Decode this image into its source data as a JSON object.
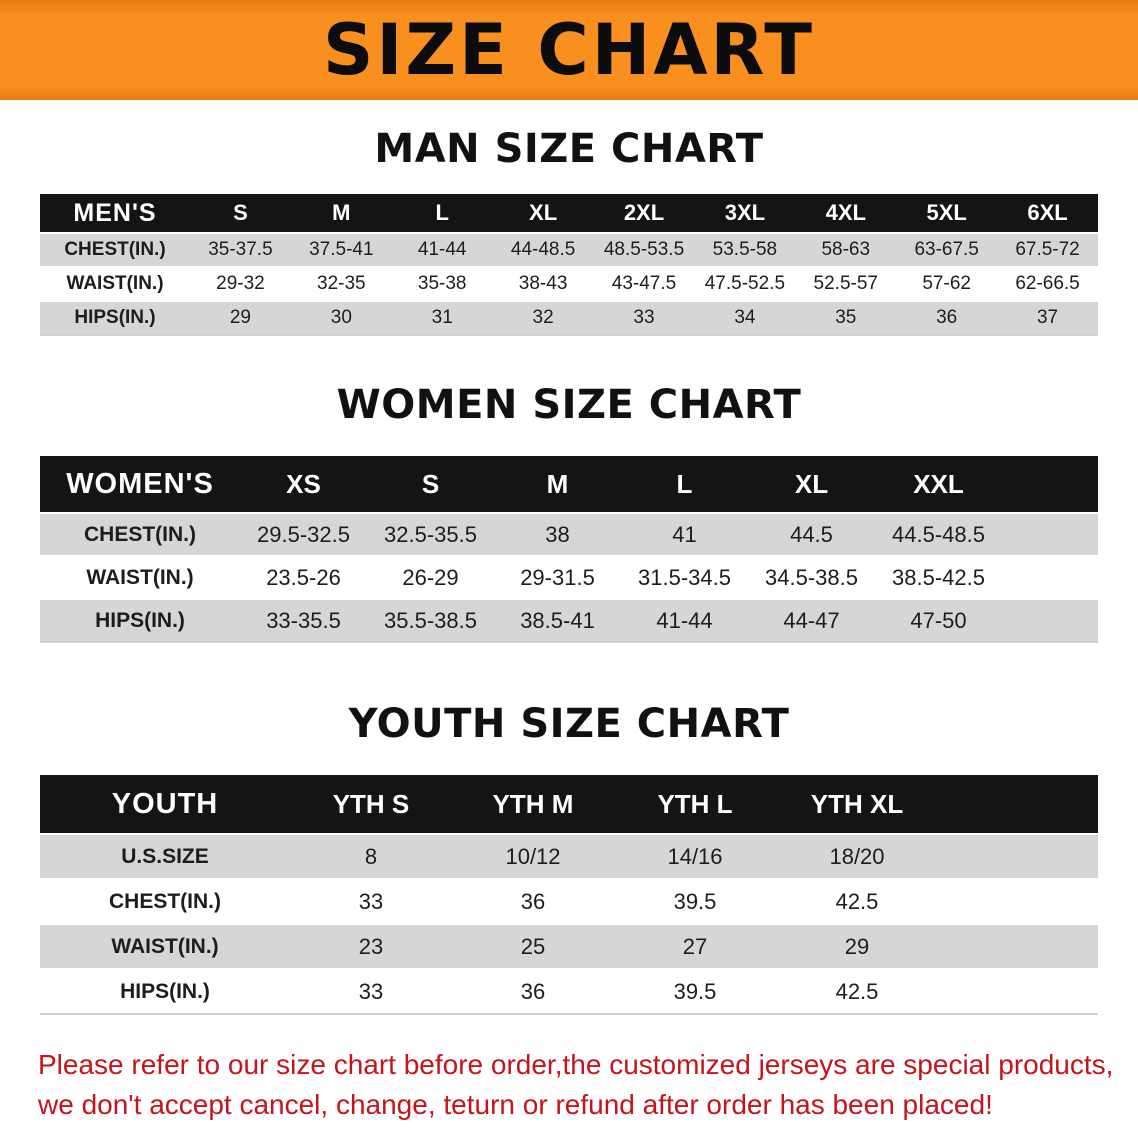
{
  "banner": {
    "title": "SIZE CHART"
  },
  "colors": {
    "banner_orange": "#f88f1e",
    "table_header_black": "#141414",
    "row_gray": "#d6d6d6",
    "row_white": "#ffffff",
    "notice_red": "#c8131c"
  },
  "sections": [
    {
      "heading": "MAN SIZE CHART",
      "corner": "MEN'S",
      "columns": [
        "S",
        "M",
        "L",
        "XL",
        "2XL",
        "3XL",
        "4XL",
        "5XL",
        "6XL"
      ],
      "rows": [
        {
          "label": "CHEST(IN.)",
          "values": [
            "35-37.5",
            "37.5-41",
            "41-44",
            "44-48.5",
            "48.5-53.5",
            "53.5-58",
            "58-63",
            "63-67.5",
            "67.5-72"
          ]
        },
        {
          "label": "WAIST(IN.)",
          "values": [
            "29-32",
            "32-35",
            "35-38",
            "38-43",
            "43-47.5",
            "47.5-52.5",
            "52.5-57",
            "57-62",
            "62-66.5"
          ]
        },
        {
          "label": "HIPS(IN.)",
          "values": [
            "29",
            "30",
            "31",
            "32",
            "33",
            "34",
            "35",
            "36",
            "37"
          ]
        }
      ]
    },
    {
      "heading": "WOMEN SIZE CHART",
      "corner": "WOMEN'S",
      "columns": [
        "XS",
        "S",
        "M",
        "L",
        "XL",
        "XXL"
      ],
      "rows": [
        {
          "label": "CHEST(IN.)",
          "values": [
            "29.5-32.5",
            "32.5-35.5",
            "38",
            "41",
            "44.5",
            "44.5-48.5"
          ]
        },
        {
          "label": "WAIST(IN.)",
          "values": [
            "23.5-26",
            "26-29",
            "29-31.5",
            "31.5-34.5",
            "34.5-38.5",
            "38.5-42.5"
          ]
        },
        {
          "label": "HIPS(IN.)",
          "values": [
            "33-35.5",
            "35.5-38.5",
            "38.5-41",
            "41-44",
            "44-47",
            "47-50"
          ]
        }
      ]
    },
    {
      "heading": "YOUTH SIZE CHART",
      "corner": "YOUTH",
      "columns": [
        "YTH S",
        "YTH M",
        "YTH L",
        "YTH XL"
      ],
      "rows": [
        {
          "label": "U.S.SIZE",
          "values": [
            "8",
            "10/12",
            "14/16",
            "18/20"
          ]
        },
        {
          "label": "CHEST(IN.)",
          "values": [
            "33",
            "36",
            "39.5",
            "42.5"
          ]
        },
        {
          "label": "WAIST(IN.)",
          "values": [
            "23",
            "25",
            "27",
            "29"
          ]
        },
        {
          "label": "HIPS(IN.)",
          "values": [
            "33",
            "36",
            "39.5",
            "42.5"
          ]
        }
      ]
    }
  ],
  "footer": {
    "line1": "Please refer to our size chart before order,the customized jerseys are special products,",
    "line2": "we don't accept cancel, change, teturn or refund after order has been placed!"
  },
  "chart_data": [
    {
      "type": "table",
      "title": "MAN SIZE CHART",
      "columns": [
        "MEN'S",
        "S",
        "M",
        "L",
        "XL",
        "2XL",
        "3XL",
        "4XL",
        "5XL",
        "6XL"
      ],
      "rows": [
        [
          "CHEST(IN.)",
          "35-37.5",
          "37.5-41",
          "41-44",
          "44-48.5",
          "48.5-53.5",
          "53.5-58",
          "58-63",
          "63-67.5",
          "67.5-72"
        ],
        [
          "WAIST(IN.)",
          "29-32",
          "32-35",
          "35-38",
          "38-43",
          "43-47.5",
          "47.5-52.5",
          "52.5-57",
          "57-62",
          "62-66.5"
        ],
        [
          "HIPS(IN.)",
          "29",
          "30",
          "31",
          "32",
          "33",
          "34",
          "35",
          "36",
          "37"
        ]
      ]
    },
    {
      "type": "table",
      "title": "WOMEN SIZE CHART",
      "columns": [
        "WOMEN'S",
        "XS",
        "S",
        "M",
        "L",
        "XL",
        "XXL"
      ],
      "rows": [
        [
          "CHEST(IN.)",
          "29.5-32.5",
          "32.5-35.5",
          "38",
          "41",
          "44.5",
          "44.5-48.5"
        ],
        [
          "WAIST(IN.)",
          "23.5-26",
          "26-29",
          "29-31.5",
          "31.5-34.5",
          "34.5-38.5",
          "38.5-42.5"
        ],
        [
          "HIPS(IN.)",
          "33-35.5",
          "35.5-38.5",
          "38.5-41",
          "41-44",
          "44-47",
          "47-50"
        ]
      ]
    },
    {
      "type": "table",
      "title": "YOUTH SIZE CHART",
      "columns": [
        "YOUTH",
        "YTH S",
        "YTH M",
        "YTH L",
        "YTH XL"
      ],
      "rows": [
        [
          "U.S.SIZE",
          "8",
          "10/12",
          "14/16",
          "18/20"
        ],
        [
          "CHEST(IN.)",
          "33",
          "36",
          "39.5",
          "42.5"
        ],
        [
          "WAIST(IN.)",
          "23",
          "25",
          "27",
          "29"
        ],
        [
          "HIPS(IN.)",
          "33",
          "36",
          "39.5",
          "42.5"
        ]
      ]
    }
  ]
}
